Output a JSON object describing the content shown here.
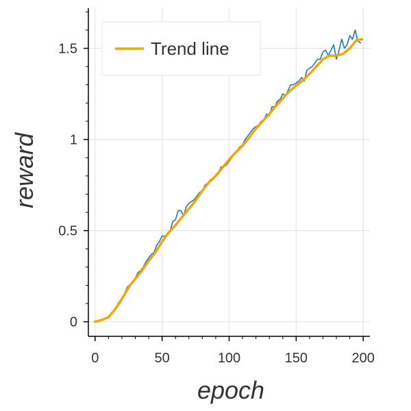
{
  "chart_data": {
    "type": "line",
    "title": "",
    "xlabel": "epoch",
    "ylabel": "reward",
    "xlim": [
      -5,
      205
    ],
    "ylim": [
      -0.08,
      1.72
    ],
    "grid": true,
    "legend_position": "top-left",
    "x_ticks": [
      {
        "value": 0,
        "label": "0"
      },
      {
        "value": 50,
        "label": "50"
      },
      {
        "value": 100,
        "label": "100"
      },
      {
        "value": 150,
        "label": "150"
      },
      {
        "value": 200,
        "label": "200"
      }
    ],
    "y_ticks": [
      {
        "value": 0,
        "label": "0"
      },
      {
        "value": 0.5,
        "label": "0.5"
      },
      {
        "value": 1,
        "label": "1"
      },
      {
        "value": 1.5,
        "label": "1.5"
      }
    ],
    "series": [
      {
        "color": "#1f77b4",
        "points": [
          [
            0,
            0.0
          ],
          [
            2,
            0.005
          ],
          [
            4,
            0.01
          ],
          [
            6,
            0.015
          ],
          [
            8,
            0.02
          ],
          [
            10,
            0.03
          ],
          [
            12,
            0.045
          ],
          [
            14,
            0.06
          ],
          [
            16,
            0.085
          ],
          [
            18,
            0.11
          ],
          [
            20,
            0.13
          ],
          [
            22,
            0.155
          ],
          [
            24,
            0.19
          ],
          [
            26,
            0.205
          ],
          [
            28,
            0.22
          ],
          [
            30,
            0.24
          ],
          [
            32,
            0.27
          ],
          [
            34,
            0.28
          ],
          [
            36,
            0.3
          ],
          [
            38,
            0.33
          ],
          [
            40,
            0.35
          ],
          [
            42,
            0.37
          ],
          [
            44,
            0.38
          ],
          [
            46,
            0.42
          ],
          [
            48,
            0.44
          ],
          [
            50,
            0.47
          ],
          [
            52,
            0.47
          ],
          [
            54,
            0.48
          ],
          [
            56,
            0.5
          ],
          [
            58,
            0.55
          ],
          [
            60,
            0.56
          ],
          [
            62,
            0.61
          ],
          [
            64,
            0.61
          ],
          [
            66,
            0.58
          ],
          [
            68,
            0.63
          ],
          [
            70,
            0.65
          ],
          [
            72,
            0.66
          ],
          [
            74,
            0.67
          ],
          [
            76,
            0.69
          ],
          [
            78,
            0.71
          ],
          [
            80,
            0.72
          ],
          [
            82,
            0.75
          ],
          [
            84,
            0.76
          ],
          [
            86,
            0.78
          ],
          [
            88,
            0.78
          ],
          [
            90,
            0.8
          ],
          [
            92,
            0.82
          ],
          [
            94,
            0.85
          ],
          [
            96,
            0.85
          ],
          [
            98,
            0.86
          ],
          [
            100,
            0.88
          ],
          [
            102,
            0.9
          ],
          [
            104,
            0.92
          ],
          [
            106,
            0.94
          ],
          [
            108,
            0.96
          ],
          [
            110,
            0.97
          ],
          [
            112,
            1.0
          ],
          [
            114,
            1.02
          ],
          [
            116,
            1.04
          ],
          [
            118,
            1.06
          ],
          [
            120,
            1.07
          ],
          [
            122,
            1.08
          ],
          [
            124,
            1.1
          ],
          [
            126,
            1.11
          ],
          [
            128,
            1.14
          ],
          [
            130,
            1.13
          ],
          [
            132,
            1.18
          ],
          [
            134,
            1.18
          ],
          [
            136,
            1.21
          ],
          [
            138,
            1.22
          ],
          [
            140,
            1.25
          ],
          [
            142,
            1.24
          ],
          [
            144,
            1.27
          ],
          [
            146,
            1.3
          ],
          [
            148,
            1.3
          ],
          [
            150,
            1.31
          ],
          [
            152,
            1.32
          ],
          [
            154,
            1.34
          ],
          [
            156,
            1.32
          ],
          [
            158,
            1.38
          ],
          [
            160,
            1.39
          ],
          [
            162,
            1.4
          ],
          [
            164,
            1.42
          ],
          [
            166,
            1.44
          ],
          [
            168,
            1.44
          ],
          [
            170,
            1.48
          ],
          [
            172,
            1.49
          ],
          [
            174,
            1.46
          ],
          [
            176,
            1.49
          ],
          [
            178,
            1.52
          ],
          [
            180,
            1.44
          ],
          [
            182,
            1.49
          ],
          [
            184,
            1.55
          ],
          [
            186,
            1.5
          ],
          [
            188,
            1.52
          ],
          [
            190,
            1.57
          ],
          [
            192,
            1.55
          ],
          [
            194,
            1.6
          ],
          [
            196,
            1.54
          ],
          [
            198,
            1.53
          ]
        ]
      },
      {
        "name": "Trend line",
        "color": "#f5a40c",
        "points": [
          [
            0,
            0.0
          ],
          [
            5,
            0.01
          ],
          [
            10,
            0.025
          ],
          [
            14,
            0.06
          ],
          [
            18,
            0.1
          ],
          [
            22,
            0.15
          ],
          [
            26,
            0.2
          ],
          [
            30,
            0.235
          ],
          [
            35,
            0.28
          ],
          [
            40,
            0.335
          ],
          [
            45,
            0.38
          ],
          [
            50,
            0.44
          ],
          [
            55,
            0.49
          ],
          [
            60,
            0.53
          ],
          [
            65,
            0.575
          ],
          [
            70,
            0.62
          ],
          [
            75,
            0.665
          ],
          [
            80,
            0.72
          ],
          [
            85,
            0.765
          ],
          [
            90,
            0.8
          ],
          [
            95,
            0.845
          ],
          [
            100,
            0.89
          ],
          [
            105,
            0.93
          ],
          [
            110,
            0.965
          ],
          [
            115,
            1.01
          ],
          [
            120,
            1.06
          ],
          [
            125,
            1.1
          ],
          [
            130,
            1.14
          ],
          [
            135,
            1.185
          ],
          [
            140,
            1.225
          ],
          [
            145,
            1.265
          ],
          [
            150,
            1.295
          ],
          [
            155,
            1.325
          ],
          [
            160,
            1.36
          ],
          [
            165,
            1.4
          ],
          [
            170,
            1.44
          ],
          [
            175,
            1.46
          ],
          [
            180,
            1.46
          ],
          [
            185,
            1.47
          ],
          [
            190,
            1.5
          ],
          [
            195,
            1.545
          ],
          [
            199,
            1.55
          ]
        ]
      }
    ]
  }
}
